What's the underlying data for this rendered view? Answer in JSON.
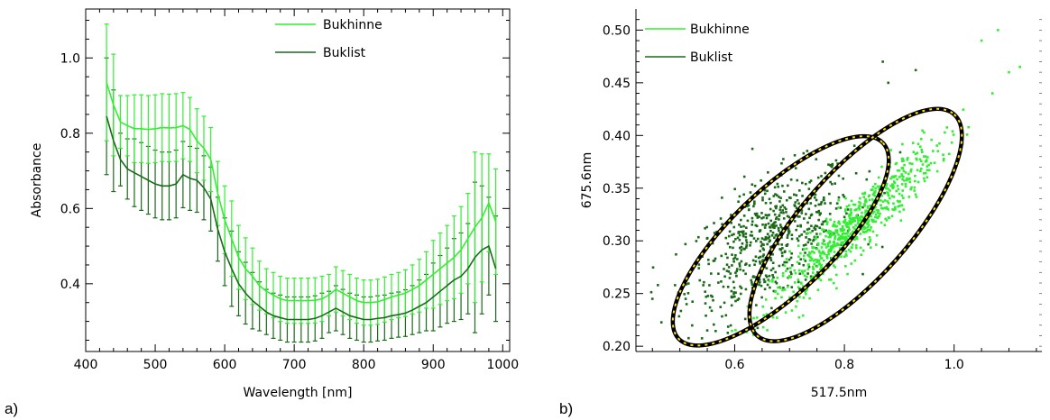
{
  "panel_labels": [
    "a)",
    "b)"
  ],
  "colors": {
    "bukhinne": "#33ee33",
    "buklist": "#1a6a1a",
    "ellipse_outline": "#000000",
    "ellipse_dash": "#ffe000"
  },
  "chart_data": [
    {
      "type": "line",
      "title": "",
      "xlabel": "Wavelength [nm]",
      "ylabel": "Absorbance",
      "xlim": [
        400,
        1010
      ],
      "ylim": [
        0.22,
        1.13
      ],
      "xticks": [
        400,
        500,
        600,
        700,
        800,
        900,
        1000
      ],
      "yticks": [
        0.4,
        0.6,
        0.8,
        1.0
      ],
      "ytick_labels": [
        "0.4",
        "0.6",
        "0.8",
        "1.0"
      ],
      "legend": "top-right",
      "error_bars": true,
      "x": [
        430,
        440,
        450,
        460,
        470,
        480,
        490,
        500,
        510,
        520,
        530,
        540,
        550,
        560,
        570,
        580,
        590,
        600,
        610,
        620,
        630,
        640,
        650,
        660,
        670,
        680,
        690,
        700,
        710,
        720,
        730,
        740,
        750,
        760,
        770,
        780,
        790,
        800,
        810,
        820,
        830,
        840,
        850,
        860,
        870,
        880,
        890,
        900,
        910,
        920,
        930,
        940,
        950,
        960,
        970,
        980,
        990
      ],
      "series": [
        {
          "name": "Bukhinne",
          "color": "#33ee33",
          "values": [
            0.935,
            0.875,
            0.83,
            0.82,
            0.812,
            0.812,
            0.81,
            0.812,
            0.815,
            0.814,
            0.815,
            0.82,
            0.81,
            0.78,
            0.76,
            0.73,
            0.64,
            0.57,
            0.52,
            0.47,
            0.44,
            0.42,
            0.395,
            0.38,
            0.37,
            0.36,
            0.355,
            0.355,
            0.355,
            0.355,
            0.356,
            0.36,
            0.37,
            0.385,
            0.375,
            0.365,
            0.355,
            0.35,
            0.35,
            0.352,
            0.358,
            0.365,
            0.37,
            0.375,
            0.385,
            0.395,
            0.41,
            0.425,
            0.44,
            0.455,
            0.47,
            0.49,
            0.52,
            0.55,
            0.575,
            0.615,
            0.565
          ],
          "error": [
            0.155,
            0.135,
            0.07,
            0.08,
            0.09,
            0.09,
            0.09,
            0.09,
            0.09,
            0.09,
            0.09,
            0.088,
            0.085,
            0.085,
            0.085,
            0.085,
            0.085,
            0.09,
            0.1,
            0.085,
            0.082,
            0.075,
            0.065,
            0.06,
            0.06,
            0.06,
            0.06,
            0.06,
            0.06,
            0.06,
            0.06,
            0.06,
            0.055,
            0.06,
            0.06,
            0.06,
            0.06,
            0.06,
            0.06,
            0.06,
            0.06,
            0.06,
            0.06,
            0.062,
            0.065,
            0.07,
            0.075,
            0.09,
            0.095,
            0.1,
            0.11,
            0.115,
            0.12,
            0.2,
            0.17,
            0.13,
            0.14
          ]
        },
        {
          "name": "Buklist",
          "color": "#1a6a1a",
          "values": [
            0.845,
            0.78,
            0.73,
            0.705,
            0.695,
            0.685,
            0.675,
            0.665,
            0.66,
            0.66,
            0.665,
            0.69,
            0.68,
            0.675,
            0.655,
            0.625,
            0.545,
            0.485,
            0.44,
            0.4,
            0.375,
            0.355,
            0.34,
            0.325,
            0.315,
            0.31,
            0.305,
            0.305,
            0.305,
            0.305,
            0.308,
            0.315,
            0.325,
            0.335,
            0.325,
            0.315,
            0.31,
            0.305,
            0.305,
            0.308,
            0.31,
            0.315,
            0.318,
            0.322,
            0.33,
            0.34,
            0.35,
            0.365,
            0.38,
            0.395,
            0.41,
            0.42,
            0.44,
            0.47,
            0.49,
            0.5,
            0.44
          ]
        }
      ]
    },
    {
      "type": "scatter",
      "title": "",
      "xlabel": "517.5nm",
      "ylabel": "675.6nm",
      "xlim": [
        0.42,
        1.16
      ],
      "ylim": [
        0.195,
        0.52
      ],
      "xticks": [
        0.6,
        0.8,
        1.0
      ],
      "xtick_labels": [
        "0.6",
        "0.8",
        "1.0"
      ],
      "yticks": [
        0.2,
        0.25,
        0.3,
        0.35,
        0.4,
        0.45,
        0.5
      ],
      "ytick_labels": [
        "0.20",
        "0.25",
        "0.30",
        "0.35",
        "0.40",
        "0.45",
        "0.50"
      ],
      "legend": "top-left",
      "series": [
        {
          "name": "Bukhinne",
          "color": "#33ee33",
          "count": 700,
          "center": [
            0.82,
            0.315
          ],
          "spread": [
            0.075,
            0.038
          ],
          "corr": 0.93,
          "outliers": [
            [
              1.08,
              0.5
            ],
            [
              1.05,
              0.49
            ],
            [
              1.1,
              0.46
            ],
            [
              1.12,
              0.465
            ],
            [
              1.07,
              0.44
            ]
          ]
        },
        {
          "name": "Buklist",
          "color": "#1a6a1a",
          "count": 600,
          "center": [
            0.665,
            0.3
          ],
          "spread": [
            0.075,
            0.035
          ],
          "corr": 0.55,
          "outliers": [
            [
              0.45,
              0.245
            ],
            [
              0.46,
              0.258
            ],
            [
              0.88,
              0.45
            ],
            [
              0.93,
              0.462
            ],
            [
              0.87,
              0.47
            ],
            [
              0.55,
              0.215
            ]
          ]
        }
      ],
      "ellipses": [
        {
          "series": "Buklist",
          "center": [
            0.684,
            0.3
          ],
          "extremes": [
            [
              0.5,
              0.215
            ],
            [
              0.87,
              0.393
            ]
          ]
        },
        {
          "series": "Bukhinne",
          "center": [
            0.8205,
            0.315
          ],
          "extremes": [
            [
              0.641,
              0.21
            ],
            [
              1.0,
              0.42
            ]
          ]
        }
      ]
    }
  ]
}
